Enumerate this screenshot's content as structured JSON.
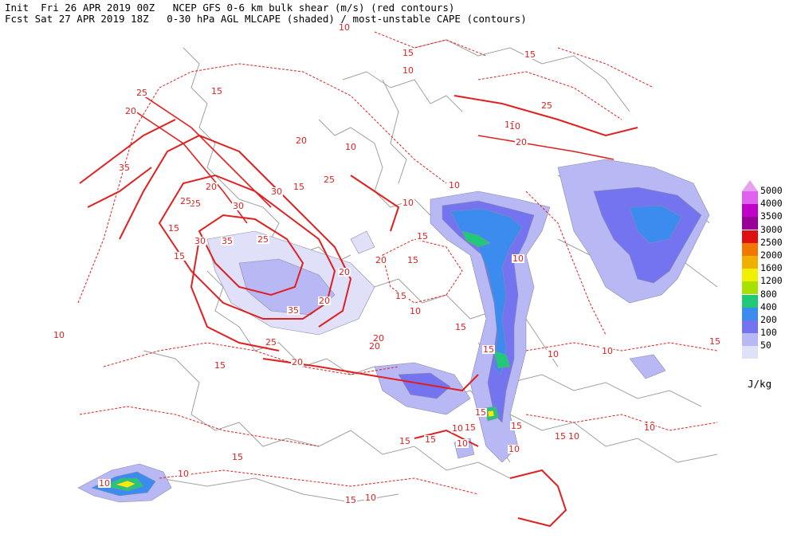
{
  "header": {
    "line1": "Init  Fri 26 APR 2019 00Z   NCEP GFS 0-6 km bulk shear (m/s) (red contours)",
    "line2": "Fcst Sat 27 APR 2019 18Z   0-30 hPa AGL MLCAPE (shaded) / most-unstable CAPE (contours)"
  },
  "legend": {
    "units": "J/kg",
    "levels": [
      {
        "label": "5000",
        "color": "#e060f0"
      },
      {
        "label": "4000",
        "color": "#c000c8"
      },
      {
        "label": "3500",
        "color": "#980098"
      },
      {
        "label": "3000",
        "color": "#e01010"
      },
      {
        "label": "2500",
        "color": "#f07800"
      },
      {
        "label": "2000",
        "color": "#f0b000"
      },
      {
        "label": "1600",
        "color": "#f0f000"
      },
      {
        "label": "1200",
        "color": "#a8e000"
      },
      {
        "label": "800",
        "color": "#20c878"
      },
      {
        "label": "400",
        "color": "#3c8cf0"
      },
      {
        "label": "200",
        "color": "#7474f0"
      },
      {
        "label": "100",
        "color": "#b8b8f4"
      },
      {
        "label": "50",
        "color": "#e0e0f8"
      }
    ]
  },
  "colors": {
    "shear_contour": "#e02020",
    "coastline": "#a0a0a0",
    "cape_contour": "#8a8aa8"
  },
  "shear_labels": [
    "10",
    "15",
    "10",
    "15",
    "25",
    "20",
    "15",
    "25",
    "15",
    "20",
    "10",
    "35",
    "25",
    "20",
    "15",
    "25",
    "30",
    "35",
    "15",
    "20",
    "25",
    "30",
    "35",
    "20",
    "30",
    "25",
    "15",
    "20",
    "10",
    "15",
    "20",
    "10",
    "15",
    "10",
    "15",
    "20",
    "10",
    "15",
    "20",
    "10",
    "10",
    "15",
    "15",
    "10",
    "10",
    "15",
    "10",
    "15",
    "10",
    "20",
    "25",
    "10",
    "15",
    "10",
    "15",
    "15",
    "10",
    "10",
    "15",
    "10",
    "10",
    "10",
    "15",
    "10",
    "10",
    "15",
    "15"
  ]
}
